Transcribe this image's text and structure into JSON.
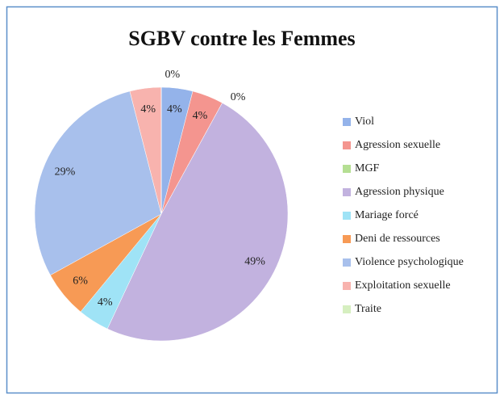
{
  "chart_data": {
    "type": "pie",
    "title": "SGBV contre les Femmes",
    "categories": [
      "Viol",
      "Agression sexuelle",
      "MGF",
      "Agression physique",
      "Mariage forcé",
      "Deni de ressources",
      "Violence psychologique",
      "Exploitation sexuelle",
      "Traite"
    ],
    "values": [
      4,
      4,
      0,
      49,
      4,
      6,
      29,
      4,
      0
    ],
    "value_labels": [
      "4%",
      "4%",
      "0%",
      "49%",
      "4%",
      "6%",
      "29%",
      "4%",
      "0%"
    ],
    "colors": [
      "#94b3ea",
      "#f4958f",
      "#b5df93",
      "#c2b2df",
      "#9fe3f6",
      "#f79a55",
      "#a8c0ec",
      "#f8b3ae",
      "#d6efc0"
    ],
    "legend": "right"
  }
}
